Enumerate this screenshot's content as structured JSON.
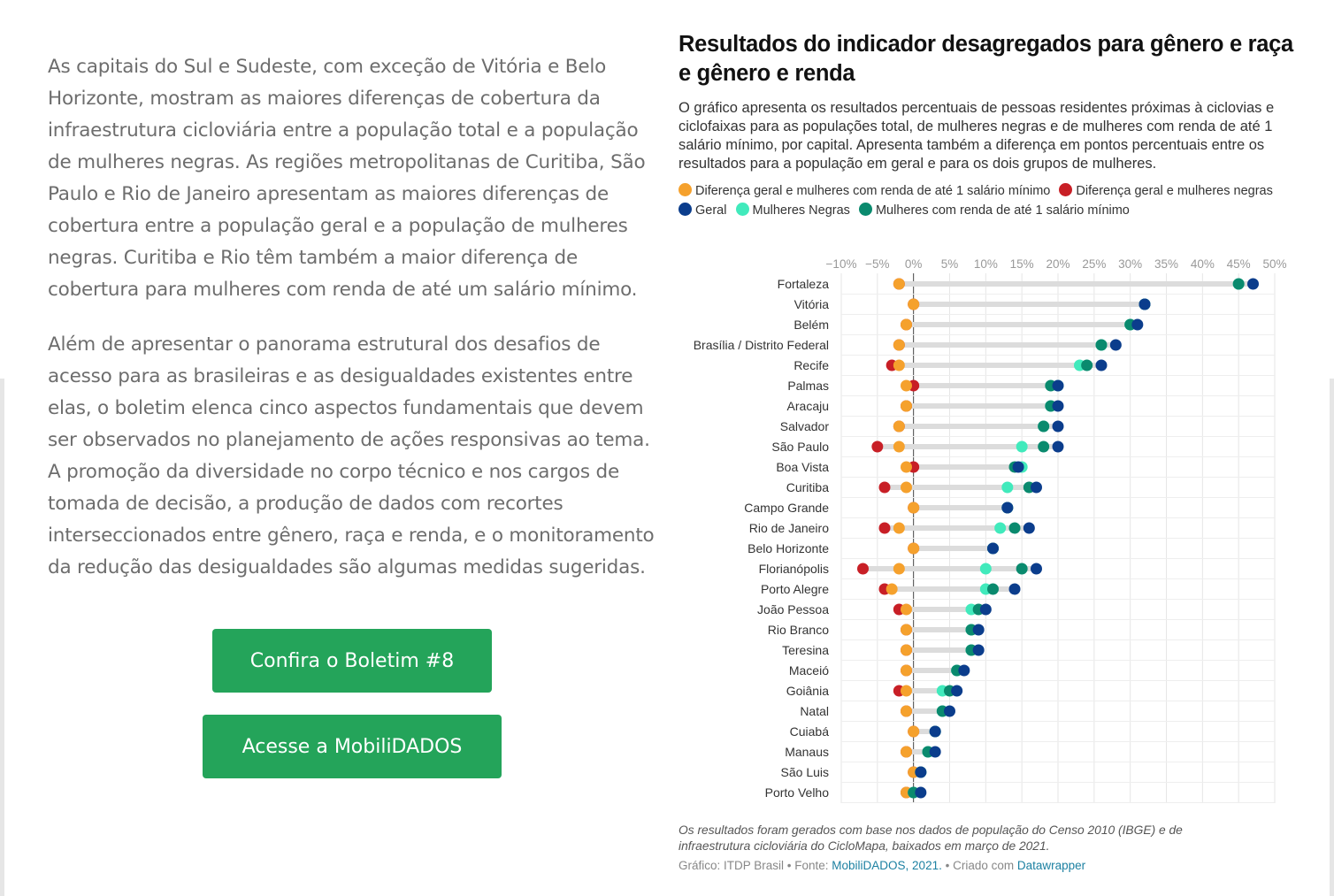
{
  "article": {
    "paragraphs": [
      "As capitais do Sul e Sudeste, com exceção de Vitória e Belo Horizonte, mostram as maiores diferenças de cobertura da infraestrutura cicloviária entre a população total e a população de mulheres negras. As regiões metropolitanas de Curitiba, São Paulo e Rio de Janeiro apresentam as maiores diferenças de cobertura entre a população geral e a população de mulheres negras. Curitiba e Rio têm também a maior diferença de cobertura para mulheres com renda de até um salário mínimo.",
      "Além de apresentar o panorama estrutural dos desafios de acesso para as brasileiras e as desigualdades existentes entre elas, o boletim elenca cinco aspectos fundamentais que devem ser observados no planejamento de ações responsivas ao tema. A promoção da diversidade no corpo técnico e nos cargos de tomada de decisão, a produção de dados com recortes interseccionados entre gênero, raça e renda, e o monitoramento da redução das desigualdades são algumas medidas sugeridas."
    ],
    "buttons": {
      "boletim": "Confira o Boletim #8",
      "mobilidados": "Acesse a MobiliDADOS"
    }
  },
  "chart_data": {
    "type": "scatter",
    "title": "Resultados do indicador desagregados para gênero e raça e gênero e renda",
    "description": "O gráfico apresenta os resultados percentuais de pessoas residentes próximas à ciclovias e ciclofaixas para as populações total, de mulheres negras e de mulheres com renda de até 1 salário mínimo, por capital. Apresenta também a diferença em pontos percentuais entre os resultados para a população em geral e para os dois grupos de mulheres.",
    "notes": "Os resultados foram gerados com base nos dados de população do Censo 2010 (IBGE) e de infraestrutura cicloviária do CicloMapa, baixados em março de 2021.",
    "credits": {
      "prefix": "Gráfico: ITDP Brasil • Fonte: ",
      "source": "MobiliDADOS, 2021.",
      "middle": " • Criado com ",
      "tool": "Datawrapper"
    },
    "x_ticks": [
      "−10%",
      "−5%",
      "0%",
      "5%",
      "10%",
      "15%",
      "20%",
      "25%",
      "30%",
      "35%",
      "40%",
      "45%",
      "50%"
    ],
    "x_tick_values": [
      -10,
      -5,
      0,
      5,
      10,
      15,
      20,
      25,
      30,
      35,
      40,
      45,
      50
    ],
    "xlim": [
      -10,
      50
    ],
    "legend_placement": "top",
    "grid": true,
    "series": [
      {
        "key": "diff_renda",
        "name": "Diferença geral e mulheres com renda de até 1 salário mínimo",
        "color": "#f5a12d"
      },
      {
        "key": "diff_negras",
        "name": "Diferença geral e mulheres negras",
        "color": "#c81f26"
      },
      {
        "key": "geral",
        "name": "Geral",
        "color": "#0b3d8c"
      },
      {
        "key": "negras",
        "name": "Mulheres Negras",
        "color": "#41eabc"
      },
      {
        "key": "renda",
        "name": "Mulheres com renda de até 1 salário mínimo",
        "color": "#0a8a6e"
      }
    ],
    "categories": [
      "Fortaleza",
      "Vitória",
      "Belém",
      "Brasília / Distrito Federal",
      "Recife",
      "Palmas",
      "Aracaju",
      "Salvador",
      "São Paulo",
      "Boa Vista",
      "Curitiba",
      "Campo Grande",
      "Rio de Janeiro",
      "Belo Horizonte",
      "Florianópolis",
      "Porto Alegre",
      "João Pessoa",
      "Rio Branco",
      "Teresina",
      "Maceió",
      "Goiânia",
      "Natal",
      "Cuiabá",
      "Manaus",
      "São Luis",
      "Porto Velho"
    ],
    "values": {
      "geral": [
        47,
        32,
        31,
        28,
        26,
        20,
        20,
        20,
        20,
        14.5,
        17,
        13,
        16,
        11,
        17,
        14,
        10,
        9,
        9,
        7,
        6,
        5,
        3,
        3,
        1,
        1
      ],
      "negras": [
        45,
        32,
        30,
        26,
        23,
        20,
        19,
        18,
        15,
        15,
        13,
        13,
        12,
        11,
        10,
        10,
        8,
        8,
        8,
        6,
        4,
        4,
        3,
        2,
        1,
        0
      ],
      "renda": [
        45,
        32,
        30,
        26,
        24,
        19,
        19,
        18,
        18,
        14,
        16,
        13,
        14,
        11,
        15,
        11,
        9,
        8,
        8,
        6,
        5,
        4,
        3,
        2,
        1,
        0
      ],
      "diff_negras": [
        -2,
        0,
        -1,
        -2,
        -3,
        0,
        -1,
        -2,
        -5,
        0,
        -4,
        0,
        -4,
        0,
        -7,
        -4,
        -2,
        -1,
        -1,
        -1,
        -2,
        -1,
        0,
        -1,
        0,
        -1
      ],
      "diff_renda": [
        -2,
        0,
        -1,
        -2,
        -2,
        -1,
        -1,
        -2,
        -2,
        -1,
        -1,
        0,
        -2,
        0,
        -2,
        -3,
        -1,
        -1,
        -1,
        -1,
        -1,
        -1,
        0,
        -1,
        0,
        -1
      ]
    }
  }
}
